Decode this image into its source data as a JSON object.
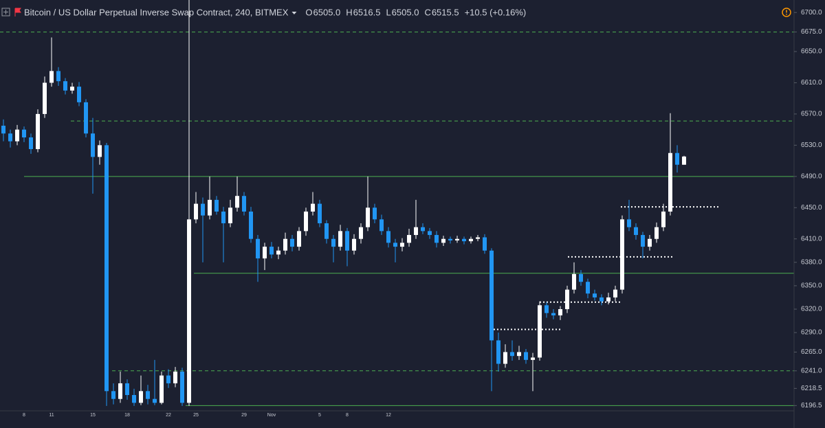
{
  "header": {
    "symbol": "Bitcoin / US Dollar Perpetual Inverse Swap Contract, 240, BITMEX",
    "ohlc": [
      {
        "key": "O",
        "value": "6505.0"
      },
      {
        "key": "H",
        "value": "6516.5"
      },
      {
        "key": "L",
        "value": "6505.0"
      },
      {
        "key": "C",
        "value": "6515.5"
      }
    ],
    "change": "+10.5 (+0.16%)"
  },
  "chart_data": {
    "type": "candlestick",
    "categories": [
      null,
      null,
      null,
      "8",
      null,
      null,
      null,
      "11",
      null,
      null,
      null,
      null,
      null,
      "15",
      null,
      null,
      null,
      null,
      "18",
      null,
      null,
      null,
      null,
      null,
      "22",
      null,
      null,
      null,
      "25",
      null,
      null,
      null,
      null,
      null,
      null,
      "29",
      null,
      null,
      null,
      "Nov",
      null,
      null,
      null,
      null,
      null,
      null,
      "5",
      null,
      null,
      null,
      "8",
      null,
      null,
      null,
      null,
      null,
      "12",
      null,
      null,
      null,
      null,
      null,
      null,
      null,
      null,
      null,
      null,
      null,
      null,
      null,
      null,
      null,
      null,
      null,
      null,
      null,
      null,
      null,
      null,
      null,
      null,
      null,
      null,
      null,
      null,
      null,
      null,
      null,
      null,
      null,
      null,
      null,
      null,
      null,
      null,
      null,
      null,
      null,
      null,
      null
    ],
    "open": [
      6555,
      6545,
      6535,
      6550,
      6540,
      6525,
      6570,
      6610,
      6625,
      6612,
      6600,
      6605,
      6585,
      6545,
      6515,
      6530,
      6215,
      6205,
      6225,
      6210,
      6200,
      6215,
      6205,
      6200,
      6235,
      6225,
      6240,
      6200,
      6435,
      6455,
      6440,
      6460,
      6445,
      6430,
      6450,
      6465,
      6445,
      6410,
      6385,
      6400,
      6390,
      6395,
      6410,
      6400,
      6420,
      6445,
      6455,
      6430,
      6410,
      6400,
      6420,
      6395,
      6410,
      6425,
      6450,
      6435,
      6420,
      6405,
      6400,
      6405,
      6415,
      6425,
      6420,
      6415,
      6405,
      6410,
      6408,
      6410,
      6407,
      6410,
      6412,
      6395,
      6280,
      6250,
      6265,
      6260,
      6265,
      6255,
      6258,
      6325,
      6315,
      6312,
      6320,
      6345,
      6365,
      6355,
      6340,
      6335,
      6330,
      6335,
      6345,
      6435,
      6425,
      6415,
      6400,
      6410,
      6425,
      6445,
      6520,
      6505
    ],
    "high": [
      6563,
      6550,
      6556,
      6554,
      6545,
      6576,
      6618,
      6668,
      6630,
      6616,
      6610,
      6611,
      6589,
      6565,
      6536,
      6533,
      6225,
      6240,
      6230,
      6218,
      6235,
      6223,
      6255,
      6240,
      6243,
      6246,
      6245,
      6716,
      6470,
      6463,
      6490,
      6465,
      6451,
      6460,
      6490,
      6470,
      6451,
      6415,
      6405,
      6406,
      6400,
      6418,
      6415,
      6425,
      6450,
      6470,
      6460,
      6434,
      6415,
      6428,
      6424,
      6416,
      6430,
      6490,
      6455,
      6441,
      6425,
      6410,
      6411,
      6423,
      6460,
      6430,
      6424,
      6420,
      6414,
      6413,
      6414,
      6413,
      6413,
      6415,
      6416,
      6398,
      6290,
      6275,
      6280,
      6273,
      6269,
      6264,
      6330,
      6329,
      6320,
      6324,
      6350,
      6380,
      6370,
      6359,
      6345,
      6339,
      6341,
      6350,
      6440,
      6460,
      6430,
      6419,
      6415,
      6431,
      6455,
      6571,
      6530,
      6516.5
    ],
    "low": [
      6535,
      6527,
      6530,
      6534,
      6519,
      6521,
      6565,
      6605,
      6606,
      6595,
      6596,
      6580,
      6540,
      6468,
      6505,
      6196,
      6198,
      6200,
      6204,
      6196,
      6197,
      6198,
      6197,
      6198,
      6219,
      6220,
      6196,
      6196,
      6430,
      6380,
      6435,
      6441,
      6380,
      6425,
      6445,
      6440,
      6405,
      6355,
      6370,
      6385,
      6384,
      6390,
      6394,
      6395,
      6414,
      6440,
      6425,
      6404,
      6380,
      6395,
      6375,
      6390,
      6404,
      6420,
      6430,
      6415,
      6399,
      6380,
      6394,
      6400,
      6410,
      6416,
      6410,
      6399,
      6401,
      6404,
      6405,
      6403,
      6404,
      6407,
      6391,
      6215,
      6240,
      6245,
      6254,
      6255,
      6250,
      6215,
      6254,
      6309,
      6307,
      6306,
      6315,
      6340,
      6350,
      6334,
      6331,
      6325,
      6326,
      6330,
      6340,
      6420,
      6409,
      6385,
      6395,
      6405,
      6420,
      6440,
      6495,
      6505
    ],
    "close": [
      6545,
      6535,
      6550,
      6540,
      6525,
      6570,
      6610,
      6625,
      6612,
      6600,
      6605,
      6585,
      6545,
      6515,
      6530,
      6215,
      6205,
      6225,
      6210,
      6200,
      6215,
      6205,
      6200,
      6235,
      6225,
      6240,
      6200,
      6435,
      6455,
      6440,
      6460,
      6445,
      6430,
      6450,
      6465,
      6445,
      6410,
      6385,
      6400,
      6390,
      6395,
      6410,
      6400,
      6420,
      6445,
      6455,
      6430,
      6410,
      6400,
      6420,
      6395,
      6410,
      6425,
      6450,
      6435,
      6420,
      6405,
      6400,
      6405,
      6415,
      6425,
      6420,
      6415,
      6405,
      6410,
      6408,
      6410,
      6407,
      6410,
      6412,
      6395,
      6280,
      6250,
      6265,
      6260,
      6265,
      6255,
      6258,
      6325,
      6315,
      6312,
      6320,
      6345,
      6365,
      6355,
      6340,
      6335,
      6330,
      6335,
      6345,
      6435,
      6425,
      6415,
      6400,
      6410,
      6425,
      6445,
      6520,
      6505,
      6515.5
    ],
    "up_color": "#ffffff",
    "down_color": "#2196f3",
    "ylim": [
      6188,
      6716
    ],
    "yticks": [
      {
        "value": 6700,
        "label": "6700.0"
      },
      {
        "value": 6675,
        "label": "6675.0"
      },
      {
        "value": 6650,
        "label": "6650.0"
      },
      {
        "value": 6610,
        "label": "6610.0"
      },
      {
        "value": 6570,
        "label": "6570.0"
      },
      {
        "value": 6530,
        "label": "6530.0"
      },
      {
        "value": 6490,
        "label": "6490.0"
      },
      {
        "value": 6450,
        "label": "6450.0"
      },
      {
        "value": 6410,
        "label": "6410.0"
      },
      {
        "value": 6380,
        "label": "6380.0"
      },
      {
        "value": 6350,
        "label": "6350.0"
      },
      {
        "value": 6320,
        "label": "6320.0"
      },
      {
        "value": 6290,
        "label": "6290.0"
      },
      {
        "value": 6265,
        "label": "6265.0"
      },
      {
        "value": 6241,
        "label": "6241.0"
      },
      6218.5,
      6196.5
    ],
    "grid": false,
    "levels": [
      {
        "value": 6675,
        "style": "dashed",
        "color": "#4caf50"
      },
      {
        "value": 6561,
        "style": "dashed",
        "color": "#4caf50"
      },
      {
        "value": 6490,
        "style": "solid",
        "color": "#4caf50"
      },
      {
        "value": 6366,
        "style": "solid",
        "color": "#4caf50"
      },
      {
        "value": 6241,
        "style": "dashed",
        "color": "#4caf50"
      },
      {
        "value": 6196.5,
        "style": "solid",
        "color": "#4caf50"
      },
      {
        "value": 6451,
        "style": "dotted",
        "color": "#ffffff"
      },
      {
        "value": 6387,
        "style": "dotted",
        "color": "#ffffff"
      },
      {
        "value": 6329,
        "style": "dotted",
        "color": "#ffffff"
      },
      {
        "value": 6294,
        "style": "dotted",
        "color": "#ffffff"
      }
    ]
  }
}
